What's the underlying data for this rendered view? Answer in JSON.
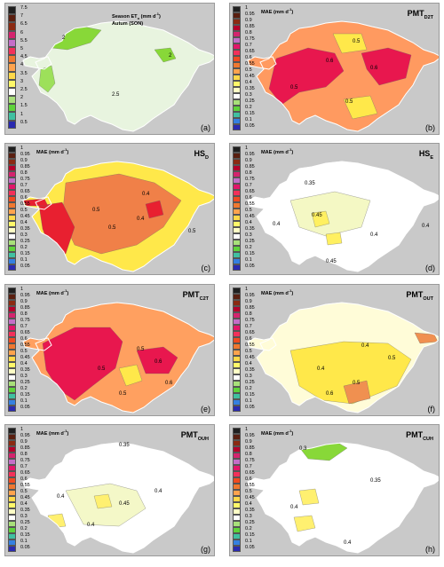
{
  "panels": [
    {
      "label": "(a)",
      "title_line1": "Season ET",
      "title_sub": "o",
      "title_line1_unit": " (mm d",
      "title_line1_sup": "-1",
      "title_line1_end": ")",
      "title_line2": "Autum (SON)",
      "name": "",
      "name_sub": "",
      "legend": [
        "7.5",
        "7",
        "6.5",
        "6",
        "5.5",
        "5",
        "4.5",
        "4",
        "3.5",
        "3",
        "2.5",
        "2",
        "1.5",
        "1",
        "0.5"
      ],
      "contours": [
        "2",
        "2",
        "2.5"
      ],
      "fills": {
        "base": "#e8f4df",
        "a": "#88d838",
        "b": "#9de05a"
      }
    },
    {
      "label": "(b)",
      "title_line1": "MAE (mm d",
      "title_line1_sup": "-1",
      "title_line1_end": ")",
      "name": "PMT",
      "name_sub": "D2T",
      "legend": [
        "1",
        "0.95",
        "0.9",
        "0.85",
        "0.8",
        "0.75",
        "0.7",
        "0.65",
        "0.6",
        "0.55",
        "0.5",
        "0.45",
        "0.4",
        "0.35",
        "0.3",
        "0.25",
        "0.2",
        "0.15",
        "0.1",
        "0.05"
      ],
      "contours": [
        "0.5",
        "0.6",
        "0.5",
        "0.6",
        "0.5"
      ],
      "fills": {
        "base": "#ff9a60",
        "a": "#e8174e",
        "b": "#ffe84a"
      }
    },
    {
      "label": "(c)",
      "title_line1": "MAE (mm d",
      "title_line1_sup": "-1",
      "title_line1_end": ")",
      "name": "HS",
      "name_sub": "D",
      "legend": [
        "1",
        "0.95",
        "0.9",
        "0.85",
        "0.8",
        "0.75",
        "0.7",
        "0.65",
        "0.6",
        "0.55",
        "0.5",
        "0.45",
        "0.4",
        "0.35",
        "0.3",
        "0.25",
        "0.2",
        "0.15",
        "0.1",
        "0.05"
      ],
      "contours": [
        "0.4",
        "0.5",
        "0.5",
        "0.4",
        "0.5"
      ],
      "fills": {
        "base": "#ffe84a",
        "a": "#f08048",
        "b": "#e82030"
      }
    },
    {
      "label": "(d)",
      "title_line1": "MAE (mm d",
      "title_line1_sup": "-1",
      "title_line1_end": ")",
      "name": "HS",
      "name_sub": "E",
      "legend": [
        "1",
        "0.95",
        "0.9",
        "0.85",
        "0.8",
        "0.75",
        "0.7",
        "0.65",
        "0.6",
        "0.55",
        "0.5",
        "0.45",
        "0.4",
        "0.35",
        "0.3",
        "0.25",
        "0.2",
        "0.15",
        "0.1",
        "0.05"
      ],
      "contours": [
        "0.35",
        "0.4",
        "0.45",
        "0.4",
        "0.45",
        "0.4"
      ],
      "fills": {
        "base": "#ffffff",
        "a": "#f4f8c4",
        "b": "#fff060"
      }
    },
    {
      "label": "(e)",
      "title_line1": "MAE (mm d",
      "title_line1_sup": "-1",
      "title_line1_end": ")",
      "name": "PMT",
      "name_sub": "C2T",
      "legend": [
        "1",
        "0.95",
        "0.9",
        "0.85",
        "0.8",
        "0.75",
        "0.7",
        "0.65",
        "0.6",
        "0.55",
        "0.5",
        "0.45",
        "0.4",
        "0.35",
        "0.3",
        "0.25",
        "0.2",
        "0.15",
        "0.1",
        "0.05"
      ],
      "contours": [
        "0.5",
        "0.5",
        "0.6",
        "0.5",
        "0.6"
      ],
      "fills": {
        "base": "#ffa060",
        "a": "#e8174e",
        "b": "#ffe84a"
      }
    },
    {
      "label": "(f)",
      "title_line1": "MAE (mm d",
      "title_line1_sup": "-1",
      "title_line1_end": ")",
      "name": "PMT",
      "name_sub": "OUT",
      "legend": [
        "1",
        "0.95",
        "0.9",
        "0.85",
        "0.8",
        "0.75",
        "0.7",
        "0.65",
        "0.6",
        "0.55",
        "0.5",
        "0.45",
        "0.4",
        "0.35",
        "0.3",
        "0.25",
        "0.2",
        "0.15",
        "0.1",
        "0.05"
      ],
      "contours": [
        "0.4",
        "0.5",
        "0.4",
        "0.5",
        "0.6"
      ],
      "fills": {
        "base": "#fffcd8",
        "a": "#ffe84a",
        "b": "#f09050"
      }
    },
    {
      "label": "(g)",
      "title_line1": "MAE (mm d",
      "title_line1_sup": "-1",
      "title_line1_end": ")",
      "name": "PMT",
      "name_sub": "OUH",
      "legend": [
        "1",
        "0.95",
        "0.9",
        "0.85",
        "0.8",
        "0.75",
        "0.7",
        "0.65",
        "0.6",
        "0.55",
        "0.5",
        "0.45",
        "0.4",
        "0.35",
        "0.3",
        "0.25",
        "0.2",
        "0.15",
        "0.1",
        "0.05"
      ],
      "contours": [
        "0.35",
        "0.4",
        "0.45",
        "0.4",
        "0.4"
      ],
      "fills": {
        "base": "#ffffff",
        "a": "#f4f8c8",
        "b": "#fff070"
      }
    },
    {
      "label": "(h)",
      "title_line1": "MAE (mm d",
      "title_line1_sup": "-1",
      "title_line1_end": ")",
      "name": "PMT",
      "name_sub": "CUH",
      "legend": [
        "1",
        "0.95",
        "0.9",
        "0.85",
        "0.8",
        "0.75",
        "0.7",
        "0.65",
        "0.6",
        "0.55",
        "0.5",
        "0.45",
        "0.4",
        "0.35",
        "0.3",
        "0.25",
        "0.2",
        "0.15",
        "0.1",
        "0.05"
      ],
      "contours": [
        "0.3",
        "0.35",
        "0.4",
        "0.4"
      ],
      "fills": {
        "base": "#ffffff",
        "a": "#88d838",
        "b": "#fff070"
      }
    }
  ],
  "legend_colors_20": [
    "#202020",
    "#5a1f10",
    "#8b2a12",
    "#b5002a",
    "#d4246e",
    "#c46ec8",
    "#e2156a",
    "#f2305a",
    "#f04a20",
    "#f07830",
    "#ffa34d",
    "#ffd94a",
    "#fff86a",
    "#ffffc6",
    "#ffffff",
    "#a8e07a",
    "#5ed33a",
    "#40c0a0",
    "#3580e0",
    "#2a2ab0"
  ],
  "legend_colors_15": [
    "#202020",
    "#5a1f10",
    "#8b2a12",
    "#d4246e",
    "#c46ec8",
    "#f2305a",
    "#f07830",
    "#ffa34d",
    "#ffd94a",
    "#fff86a",
    "#ffffff",
    "#a8e07a",
    "#5ed33a",
    "#40c0a0",
    "#2a2ab0"
  ]
}
